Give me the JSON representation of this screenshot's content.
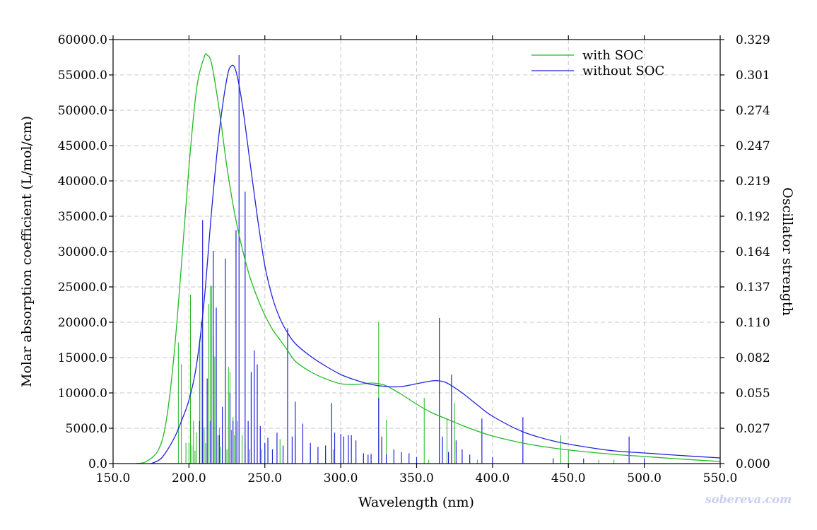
{
  "chart_data": {
    "type": "line",
    "xlabel": "Wavelength (nm)",
    "ylabel": "Molar absorption coefficient (L/mol/cm)",
    "y2label": "Oscillator strength",
    "xlim": [
      150,
      550
    ],
    "ylim": [
      0,
      60000
    ],
    "y2lim": [
      0,
      0.329
    ],
    "x_ticks": [
      "150.0",
      "200.0",
      "250.0",
      "300.0",
      "350.0",
      "400.0",
      "450.0",
      "500.0",
      "550.0"
    ],
    "y_ticks": [
      "0.0",
      "5000.0",
      "10000.0",
      "15000.0",
      "20000.0",
      "25000.0",
      "30000.0",
      "35000.0",
      "40000.0",
      "45000.0",
      "50000.0",
      "55000.0",
      "60000.0"
    ],
    "y2_ticks": [
      "0.000",
      "0.027",
      "0.055",
      "0.082",
      "0.110",
      "0.137",
      "0.164",
      "0.192",
      "0.219",
      "0.247",
      "0.274",
      "0.301",
      "0.329"
    ],
    "grid": true,
    "legend_position": "top-right",
    "watermark": "sobereva.com",
    "series": [
      {
        "name": "with SOC",
        "color": "#22bb22",
        "x": [
          165,
          172,
          180,
          185,
          190,
          195,
          200,
          205,
          210,
          212,
          215,
          220,
          225,
          230,
          235,
          240,
          245,
          250,
          255,
          260,
          265,
          270,
          280,
          290,
          300,
          310,
          320,
          325,
          330,
          340,
          350,
          360,
          370,
          380,
          390,
          400,
          420,
          440,
          460,
          480,
          500,
          520,
          550
        ],
        "y": [
          0,
          300,
          2000,
          6000,
          15000,
          28000,
          42000,
          53000,
          57500,
          57800,
          56500,
          50000,
          42000,
          35500,
          30500,
          26500,
          23500,
          21000,
          19000,
          17500,
          16000,
          14500,
          13000,
          12000,
          11300,
          11200,
          11400,
          11300,
          11000,
          9800,
          8400,
          7200,
          6300,
          5400,
          4600,
          3900,
          2900,
          2200,
          1700,
          1300,
          1000,
          700,
          300
        ],
        "sticks": {
          "x": [
            193,
            195,
            198,
            200,
            201,
            202,
            203,
            204,
            205,
            207,
            208,
            209,
            210,
            211,
            212,
            213,
            214,
            215,
            216,
            217,
            218,
            219,
            220,
            221,
            222,
            224,
            225,
            226,
            227,
            228,
            229,
            230,
            232,
            235,
            237,
            240,
            243,
            245,
            248,
            250,
            255,
            260,
            265,
            268,
            270,
            275,
            280,
            285,
            290,
            295,
            300,
            305,
            310,
            315,
            320,
            325,
            327,
            330,
            340,
            350,
            355,
            358,
            365,
            370,
            375,
            380,
            385,
            390,
            420,
            445,
            450,
            470,
            480
          ],
          "f": [
            0.094,
            0.077,
            0.016,
            0.016,
            0.131,
            0.014,
            0.033,
            0.01,
            0.024,
            0.096,
            0.11,
            0.033,
            0.028,
            0.016,
            0.066,
            0.124,
            0.138,
            0.138,
            0.099,
            0.083,
            0.115,
            0.022,
            0.028,
            0.013,
            0.017,
            0.016,
            0.011,
            0.075,
            0.071,
            0.026,
            0.036,
            0.022,
            0.033,
            0.022,
            0.016,
            0.011,
            0.019,
            0.022,
            0.011,
            0.014,
            0.011,
            0.019,
            0.008,
            0.011,
            0.022,
            0.016,
            0.011,
            0.008,
            0.008,
            0.011,
            0.008,
            0.008,
            0.005,
            0.008,
            0.008,
            0.11,
            0.017,
            0.034,
            0.003,
            0.005,
            0.051,
            0.003,
            0.005,
            0.035,
            0.047,
            0.003,
            0.003,
            0.003,
            0.003,
            0.022,
            0.011,
            0.003,
            0.003
          ]
        }
      },
      {
        "name": "without SOC",
        "color": "#2222dd",
        "x": [
          175,
          182,
          190,
          195,
          200,
          205,
          210,
          215,
          220,
          225,
          228,
          231,
          235,
          240,
          245,
          250,
          255,
          260,
          265,
          270,
          280,
          290,
          300,
          310,
          320,
          330,
          340,
          350,
          360,
          365,
          370,
          380,
          390,
          400,
          420,
          440,
          460,
          480,
          500,
          520,
          550
        ],
        "y": [
          0,
          800,
          3500,
          6000,
          9000,
          14000,
          23000,
          36000,
          47000,
          54500,
          56300,
          55500,
          51000,
          43000,
          35000,
          28000,
          23500,
          20500,
          18500,
          17000,
          15200,
          13800,
          12600,
          11800,
          11200,
          10900,
          10900,
          11300,
          11700,
          11700,
          11400,
          10000,
          8300,
          6700,
          4500,
          3200,
          2400,
          1800,
          1500,
          1200,
          800
        ]
      }
    ],
    "blue_sticks": {
      "x": [
        207,
        209,
        212,
        214,
        216,
        218,
        220,
        222,
        224,
        227,
        229,
        231,
        233,
        237,
        239,
        241,
        243,
        245,
        247,
        250,
        252,
        255,
        258,
        262,
        265,
        268,
        270,
        275,
        280,
        285,
        290,
        294,
        296,
        300,
        302,
        305,
        307,
        310,
        315,
        318,
        320,
        325,
        327,
        330,
        335,
        340,
        345,
        350,
        365,
        367,
        371,
        373,
        376,
        380,
        385,
        393,
        400,
        420,
        440,
        460,
        490,
        500
      ],
      "f": [
        0.033,
        0.189,
        0.066,
        0.033,
        0.165,
        0.121,
        0.022,
        0.044,
        0.159,
        0.055,
        0.033,
        0.181,
        0.317,
        0.211,
        0.033,
        0.071,
        0.088,
        0.077,
        0.029,
        0.016,
        0.02,
        0.011,
        0.024,
        0.014,
        0.105,
        0.021,
        0.048,
        0.031,
        0.016,
        0.013,
        0.014,
        0.047,
        0.024,
        0.023,
        0.021,
        0.022,
        0.022,
        0.018,
        0.008,
        0.007,
        0.007,
        0.051,
        0.021,
        0.007,
        0.011,
        0.009,
        0.008,
        0.005,
        0.113,
        0.021,
        0.009,
        0.069,
        0.018,
        0.011,
        0.007,
        0.035,
        0.005,
        0.036,
        0.004,
        0.004,
        0.021,
        0.004
      ]
    }
  }
}
